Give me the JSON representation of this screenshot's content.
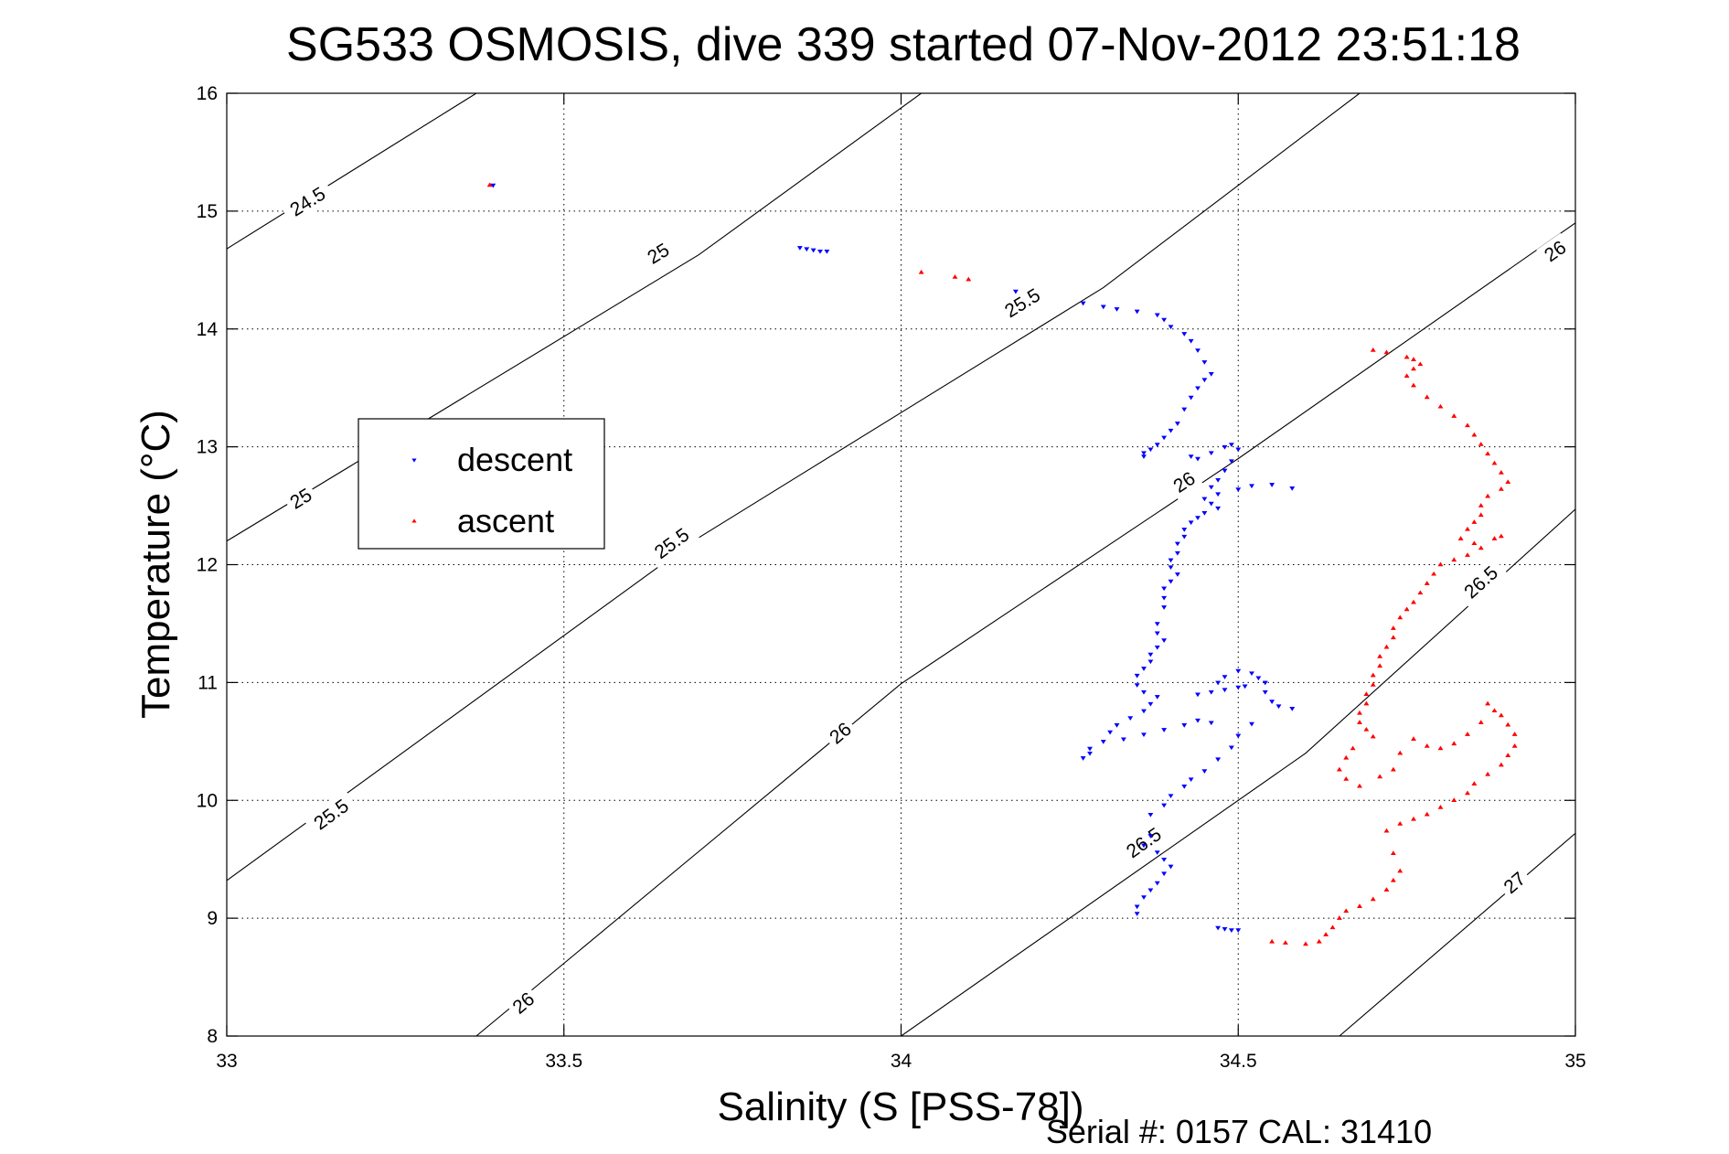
{
  "chart_data": {
    "type": "scatter",
    "title": "SG533 OSMOSIS, dive 339 started 07-Nov-2012 23:51:18",
    "xlabel": "Salinity (S [PSS-78])",
    "ylabel": "Temperature (°C)",
    "footer": "Serial #: 0157  CAL: 31410",
    "xlim": [
      33,
      35
    ],
    "ylim": [
      8,
      16
    ],
    "xticks": [
      33,
      33.5,
      34,
      34.5,
      35
    ],
    "xtick_labels": [
      "33",
      "33.5",
      "34",
      "34.5",
      "35"
    ],
    "yticks": [
      8,
      9,
      10,
      11,
      12,
      13,
      14,
      15,
      16
    ],
    "ytick_labels": [
      "8",
      "9",
      "10",
      "11",
      "12",
      "13",
      "14",
      "15",
      "16"
    ],
    "grid": true,
    "legend_position": "left",
    "series": [
      {
        "name": "descent",
        "color": "#0000ff",
        "marker": "down-triangle",
        "points": [
          [
            33.395,
            15.22
          ],
          [
            33.85,
            14.69
          ],
          [
            33.86,
            14.68
          ],
          [
            33.87,
            14.67
          ],
          [
            33.88,
            14.66
          ],
          [
            33.89,
            14.66
          ],
          [
            34.17,
            14.32
          ],
          [
            34.27,
            14.22
          ],
          [
            34.3,
            14.19
          ],
          [
            34.32,
            14.17
          ],
          [
            34.35,
            14.15
          ],
          [
            34.38,
            14.12
          ],
          [
            34.39,
            14.08
          ],
          [
            34.4,
            14.02
          ],
          [
            34.42,
            13.96
          ],
          [
            34.43,
            13.9
          ],
          [
            34.44,
            13.82
          ],
          [
            34.45,
            13.72
          ],
          [
            34.46,
            13.62
          ],
          [
            34.45,
            13.57
          ],
          [
            34.44,
            13.5
          ],
          [
            34.43,
            13.42
          ],
          [
            34.42,
            13.32
          ],
          [
            34.41,
            13.2
          ],
          [
            34.4,
            13.14
          ],
          [
            34.39,
            13.08
          ],
          [
            34.38,
            13.02
          ],
          [
            34.37,
            12.98
          ],
          [
            34.36,
            12.95
          ],
          [
            34.36,
            12.92
          ],
          [
            34.43,
            12.92
          ],
          [
            34.44,
            12.9
          ],
          [
            34.46,
            12.95
          ],
          [
            34.48,
            13.0
          ],
          [
            34.49,
            13.02
          ],
          [
            34.5,
            12.98
          ],
          [
            34.49,
            12.88
          ],
          [
            34.48,
            12.8
          ],
          [
            34.47,
            12.72
          ],
          [
            34.46,
            12.66
          ],
          [
            34.47,
            12.6
          ],
          [
            34.5,
            12.64
          ],
          [
            34.52,
            12.67
          ],
          [
            34.55,
            12.68
          ],
          [
            34.58,
            12.65
          ],
          [
            34.45,
            12.56
          ],
          [
            34.46,
            12.52
          ],
          [
            34.47,
            12.48
          ],
          [
            34.45,
            12.44
          ],
          [
            34.44,
            12.4
          ],
          [
            34.43,
            12.36
          ],
          [
            34.42,
            12.3
          ],
          [
            34.42,
            12.24
          ],
          [
            34.41,
            12.18
          ],
          [
            34.41,
            12.1
          ],
          [
            34.4,
            12.04
          ],
          [
            34.4,
            11.98
          ],
          [
            34.41,
            11.92
          ],
          [
            34.4,
            11.86
          ],
          [
            34.39,
            11.8
          ],
          [
            34.39,
            11.72
          ],
          [
            34.39,
            11.64
          ],
          [
            34.38,
            11.5
          ],
          [
            34.38,
            11.42
          ],
          [
            34.39,
            11.36
          ],
          [
            34.38,
            11.3
          ],
          [
            34.37,
            11.24
          ],
          [
            34.37,
            11.18
          ],
          [
            34.36,
            11.12
          ],
          [
            34.35,
            11.06
          ],
          [
            34.35,
            10.98
          ],
          [
            34.36,
            10.92
          ],
          [
            34.38,
            10.88
          ],
          [
            34.37,
            10.82
          ],
          [
            34.36,
            10.76
          ],
          [
            34.34,
            10.7
          ],
          [
            34.32,
            10.64
          ],
          [
            34.31,
            10.58
          ],
          [
            34.3,
            10.5
          ],
          [
            34.28,
            10.44
          ],
          [
            34.28,
            10.4
          ],
          [
            34.27,
            10.36
          ],
          [
            34.33,
            10.52
          ],
          [
            34.36,
            10.56
          ],
          [
            34.39,
            10.6
          ],
          [
            34.42,
            10.64
          ],
          [
            34.44,
            10.68
          ],
          [
            34.46,
            10.66
          ],
          [
            34.44,
            10.9
          ],
          [
            34.46,
            10.92
          ],
          [
            34.48,
            10.94
          ],
          [
            34.5,
            10.96
          ],
          [
            34.51,
            10.97
          ],
          [
            34.47,
            11.0
          ],
          [
            34.48,
            11.05
          ],
          [
            34.5,
            11.1
          ],
          [
            34.52,
            11.08
          ],
          [
            34.53,
            11.04
          ],
          [
            34.54,
            11.0
          ],
          [
            34.54,
            10.92
          ],
          [
            34.55,
            10.84
          ],
          [
            34.56,
            10.8
          ],
          [
            34.58,
            10.78
          ],
          [
            34.52,
            10.65
          ],
          [
            34.5,
            10.55
          ],
          [
            34.49,
            10.45
          ],
          [
            34.47,
            10.35
          ],
          [
            34.45,
            10.25
          ],
          [
            34.43,
            10.18
          ],
          [
            34.42,
            10.12
          ],
          [
            34.4,
            10.04
          ],
          [
            34.39,
            9.96
          ],
          [
            34.37,
            9.88
          ],
          [
            34.37,
            9.7
          ],
          [
            34.36,
            9.62
          ],
          [
            34.38,
            9.56
          ],
          [
            34.39,
            9.5
          ],
          [
            34.4,
            9.44
          ],
          [
            34.39,
            9.38
          ],
          [
            34.38,
            9.3
          ],
          [
            34.37,
            9.24
          ],
          [
            34.36,
            9.18
          ],
          [
            34.35,
            9.1
          ],
          [
            34.35,
            9.04
          ],
          [
            34.47,
            8.92
          ],
          [
            34.48,
            8.91
          ],
          [
            34.49,
            8.9
          ],
          [
            34.5,
            8.9
          ]
        ]
      },
      {
        "name": "ascent",
        "color": "#ff0000",
        "marker": "up-triangle",
        "points": [
          [
            33.39,
            15.22
          ],
          [
            34.03,
            14.48
          ],
          [
            34.08,
            14.44
          ],
          [
            34.1,
            14.42
          ],
          [
            34.7,
            13.82
          ],
          [
            34.72,
            13.8
          ],
          [
            34.75,
            13.76
          ],
          [
            34.76,
            13.74
          ],
          [
            34.77,
            13.7
          ],
          [
            34.76,
            13.66
          ],
          [
            34.75,
            13.6
          ],
          [
            34.76,
            13.52
          ],
          [
            34.78,
            13.42
          ],
          [
            34.8,
            13.34
          ],
          [
            34.82,
            13.26
          ],
          [
            34.84,
            13.18
          ],
          [
            34.85,
            13.1
          ],
          [
            34.86,
            13.02
          ],
          [
            34.87,
            12.94
          ],
          [
            34.88,
            12.86
          ],
          [
            34.89,
            12.78
          ],
          [
            34.9,
            12.7
          ],
          [
            34.89,
            12.64
          ],
          [
            34.87,
            12.58
          ],
          [
            34.86,
            12.5
          ],
          [
            34.86,
            12.42
          ],
          [
            34.85,
            12.36
          ],
          [
            34.84,
            12.3
          ],
          [
            34.83,
            12.22
          ],
          [
            34.85,
            12.18
          ],
          [
            34.88,
            12.22
          ],
          [
            34.89,
            12.24
          ],
          [
            34.86,
            12.14
          ],
          [
            34.84,
            12.08
          ],
          [
            34.82,
            12.04
          ],
          [
            34.8,
            12.0
          ],
          [
            34.79,
            11.92
          ],
          [
            34.78,
            11.84
          ],
          [
            34.77,
            11.76
          ],
          [
            34.76,
            11.68
          ],
          [
            34.75,
            11.62
          ],
          [
            34.74,
            11.55
          ],
          [
            34.73,
            11.46
          ],
          [
            34.73,
            11.38
          ],
          [
            34.72,
            11.3
          ],
          [
            34.71,
            11.22
          ],
          [
            34.71,
            11.14
          ],
          [
            34.7,
            11.06
          ],
          [
            34.7,
            10.98
          ],
          [
            34.69,
            10.9
          ],
          [
            34.69,
            10.82
          ],
          [
            34.68,
            10.74
          ],
          [
            34.68,
            10.66
          ],
          [
            34.69,
            10.6
          ],
          [
            34.7,
            10.54
          ],
          [
            34.67,
            10.44
          ],
          [
            34.66,
            10.36
          ],
          [
            34.65,
            10.26
          ],
          [
            34.66,
            10.18
          ],
          [
            34.68,
            10.12
          ],
          [
            34.71,
            10.2
          ],
          [
            34.73,
            10.26
          ],
          [
            34.74,
            10.4
          ],
          [
            34.76,
            10.52
          ],
          [
            34.78,
            10.46
          ],
          [
            34.8,
            10.44
          ],
          [
            34.82,
            10.48
          ],
          [
            34.84,
            10.56
          ],
          [
            34.86,
            10.66
          ],
          [
            34.88,
            10.76
          ],
          [
            34.87,
            10.82
          ],
          [
            34.89,
            10.72
          ],
          [
            34.9,
            10.64
          ],
          [
            34.91,
            10.56
          ],
          [
            34.91,
            10.46
          ],
          [
            34.9,
            10.38
          ],
          [
            34.89,
            10.3
          ],
          [
            34.87,
            10.22
          ],
          [
            34.85,
            10.14
          ],
          [
            34.84,
            10.06
          ],
          [
            34.82,
            10.0
          ],
          [
            34.8,
            9.94
          ],
          [
            34.78,
            9.88
          ],
          [
            34.76,
            9.84
          ],
          [
            34.74,
            9.8
          ],
          [
            34.72,
            9.74
          ],
          [
            34.73,
            9.55
          ],
          [
            34.74,
            9.4
          ],
          [
            34.73,
            9.32
          ],
          [
            34.72,
            9.24
          ],
          [
            34.7,
            9.16
          ],
          [
            34.68,
            9.1
          ],
          [
            34.66,
            9.06
          ],
          [
            34.65,
            9.0
          ],
          [
            34.64,
            8.92
          ],
          [
            34.63,
            8.86
          ],
          [
            34.62,
            8.8
          ],
          [
            34.6,
            8.78
          ],
          [
            34.57,
            8.79
          ],
          [
            34.55,
            8.8
          ]
        ]
      }
    ],
    "density_contours": [
      {
        "level": "24.5",
        "points": [
          [
            33,
            14.68
          ],
          [
            33.37,
            16.0
          ]
        ],
        "labels": [
          {
            "text": "24.5",
            "x": 33.12,
            "y": 15.08
          }
        ]
      },
      {
        "level": "25",
        "points": [
          [
            33,
            12.2
          ],
          [
            33.7,
            14.63
          ],
          [
            34.03,
            16.0
          ]
        ],
        "labels": [
          {
            "text": "25",
            "x": 33.11,
            "y": 12.56
          },
          {
            "text": "25",
            "x": 33.64,
            "y": 14.64
          }
        ]
      },
      {
        "level": "25.5",
        "points": [
          [
            33,
            9.32
          ],
          [
            33.7,
            12.23
          ],
          [
            34.3,
            14.35
          ],
          [
            34.68,
            16.0
          ]
        ],
        "labels": [
          {
            "text": "25.5",
            "x": 33.155,
            "y": 9.88
          },
          {
            "text": "25.5",
            "x": 33.66,
            "y": 12.18
          },
          {
            "text": "25.5",
            "x": 34.18,
            "y": 14.22
          }
        ]
      },
      {
        "level": "26",
        "points": [
          [
            33.37,
            8.0
          ],
          [
            34.0,
            10.99
          ],
          [
            34.5,
            12.9
          ],
          [
            35,
            14.9
          ]
        ],
        "labels": [
          {
            "text": "26",
            "x": 33.44,
            "y": 8.28
          },
          {
            "text": "26",
            "x": 33.91,
            "y": 10.57
          },
          {
            "text": "26",
            "x": 34.42,
            "y": 12.7
          },
          {
            "text": "26",
            "x": 34.97,
            "y": 14.66
          }
        ]
      },
      {
        "level": "26.5",
        "points": [
          [
            34.0,
            8.0
          ],
          [
            34.4,
            9.6
          ],
          [
            34.6,
            10.4
          ],
          [
            35,
            12.47
          ]
        ],
        "labels": [
          {
            "text": "26.5",
            "x": 34.36,
            "y": 9.64
          },
          {
            "text": "26.5",
            "x": 34.86,
            "y": 11.85
          }
        ]
      },
      {
        "level": "27",
        "points": [
          [
            34.65,
            8.0
          ],
          [
            35,
            9.72
          ]
        ],
        "labels": [
          {
            "text": "27",
            "x": 34.91,
            "y": 9.3
          }
        ]
      }
    ]
  }
}
